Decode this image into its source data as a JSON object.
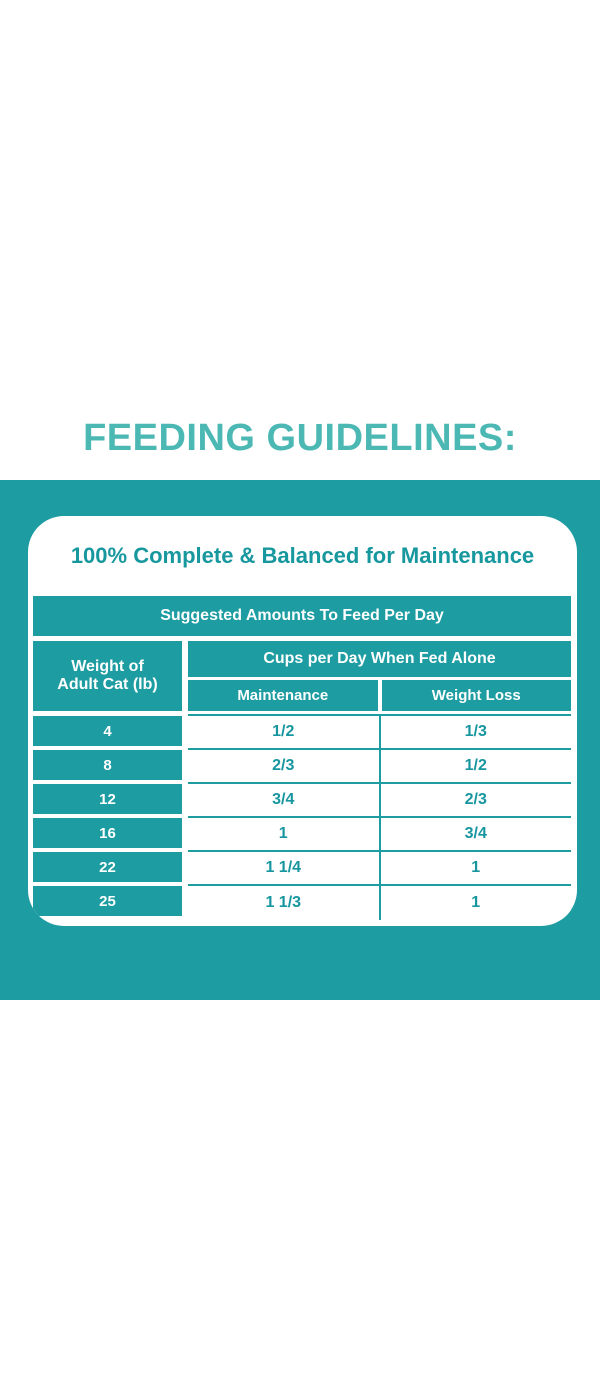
{
  "page": {
    "title": "FEEDING GUIDELINES:"
  },
  "card": {
    "heading": "100% Complete & Balanced for Maintenance"
  },
  "table": {
    "band_header": "Suggested Amounts To Feed Per Day",
    "weight_header_line1": "Weight of",
    "weight_header_line2": "Adult Cat (lb)",
    "cups_header": "Cups per Day When Fed Alone",
    "col_maintenance": "Maintenance",
    "col_weight_loss": "Weight Loss",
    "rows": [
      {
        "weight": "4",
        "maintenance": "1/2",
        "weight_loss": "1/3"
      },
      {
        "weight": "8",
        "maintenance": "2/3",
        "weight_loss": "1/2"
      },
      {
        "weight": "12",
        "maintenance": "3/4",
        "weight_loss": "2/3"
      },
      {
        "weight": "16",
        "maintenance": "1",
        "weight_loss": "3/4"
      },
      {
        "weight": "22",
        "maintenance": "1 1/4",
        "weight_loss": "1"
      },
      {
        "weight": "25",
        "maintenance": "1 1/3",
        "weight_loss": "1"
      }
    ]
  },
  "colors": {
    "teal_bg": "#1D9CA2",
    "title_teal": "#4CB8B4",
    "heading_teal": "#17979E",
    "value_teal": "#17969F",
    "white": "#FFFFFF"
  }
}
